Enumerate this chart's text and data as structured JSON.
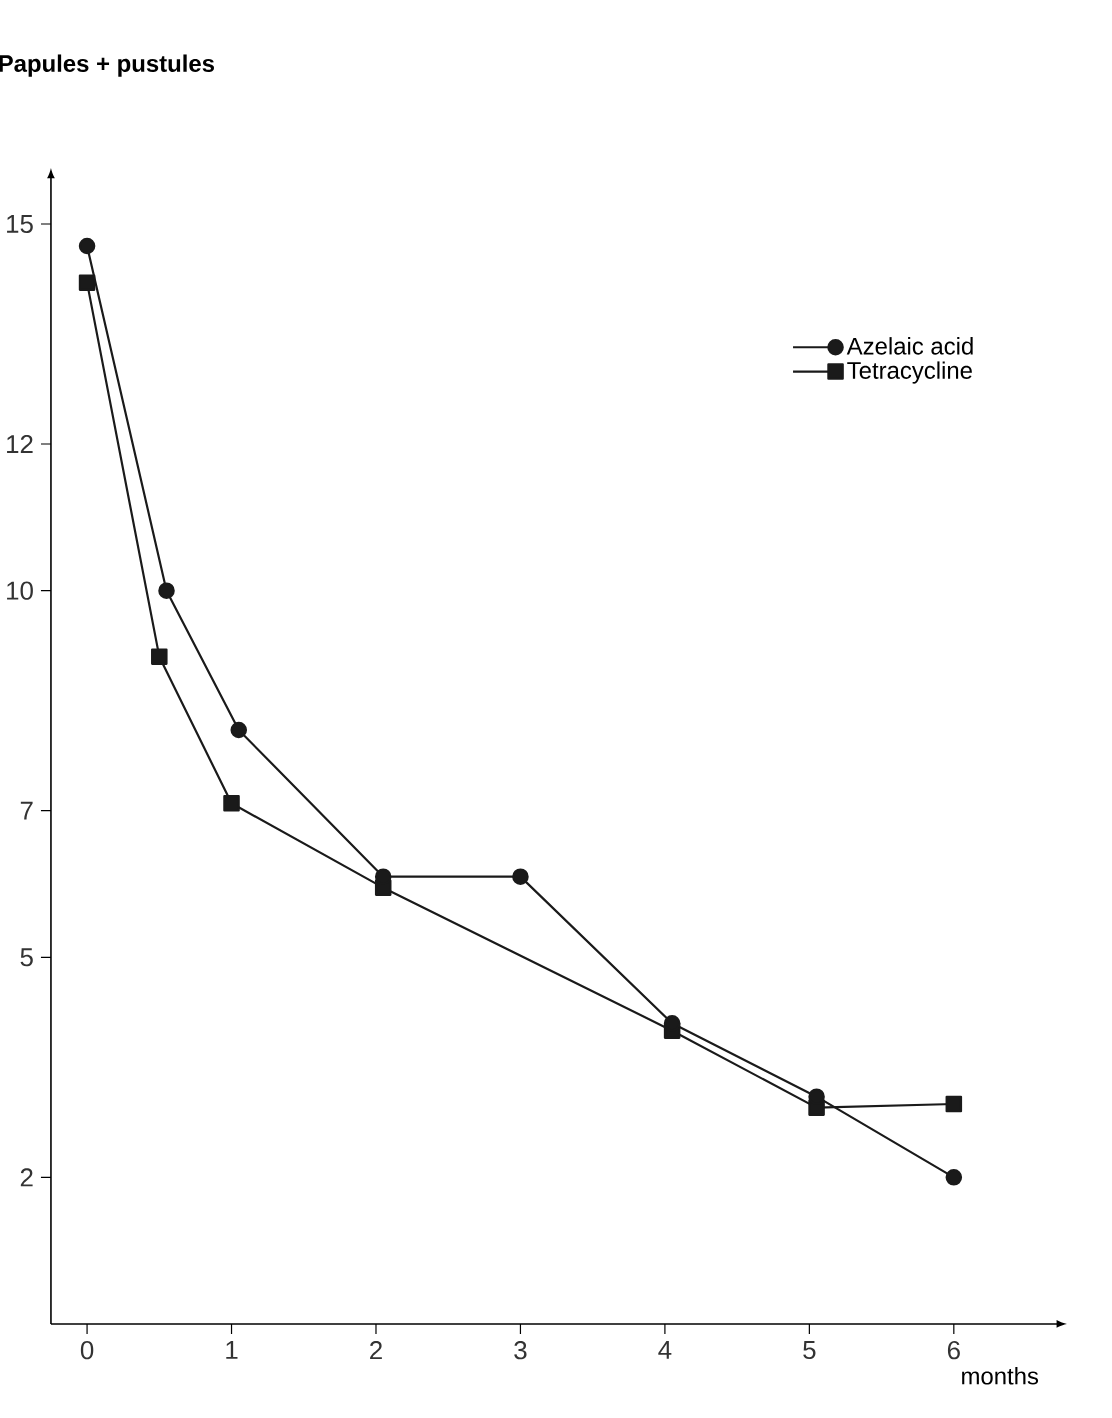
{
  "chart_data": {
    "type": "line",
    "ylabel": "Papules + pustules",
    "xlabel": "months",
    "xlim": [
      -0.25,
      6.7
    ],
    "xticks": [
      0,
      1,
      2,
      3,
      4,
      5,
      6
    ],
    "ylim": [
      0,
      15.6
    ],
    "yticks": [
      2,
      5,
      7,
      10,
      12,
      15
    ],
    "legend": "top right",
    "line_style": "solid",
    "series": [
      {
        "name": "Azelaic acid",
        "color": "#1a1a1a",
        "marker": "circle",
        "x": [
          0,
          0.55,
          1.05,
          2.05,
          3,
          4.05,
          5.05,
          6
        ],
        "values": [
          14.7,
          10.0,
          8.1,
          6.1,
          6.1,
          4.1,
          3.1,
          2.0
        ]
      },
      {
        "name": "Tetracycline",
        "color": "#1a1a1a",
        "marker": "square",
        "x": [
          0,
          0.5,
          1,
          2.05,
          4.05,
          5.05,
          6
        ],
        "values": [
          14.2,
          9.1,
          7.1,
          5.95,
          4.0,
          2.95,
          3.0
        ]
      }
    ]
  }
}
